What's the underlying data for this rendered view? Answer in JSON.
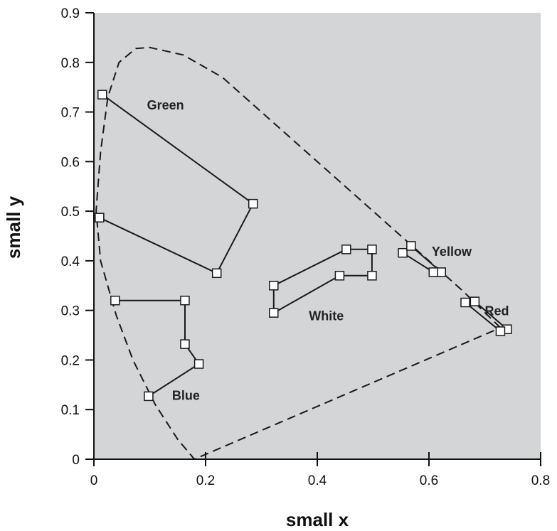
{
  "chart_data": {
    "type": "line",
    "xlabel": "small x",
    "ylabel": "small y",
    "xlim": [
      0,
      0.8
    ],
    "ylim": [
      0,
      0.9
    ],
    "x_ticks": [
      0,
      0.2,
      0.4,
      0.6,
      0.8
    ],
    "x_tick_labels": [
      "0",
      "0.2",
      "0.4",
      "0.6",
      "0.8"
    ],
    "y_ticks": [
      0,
      0.1,
      0.2,
      0.3,
      0.4,
      0.5,
      0.6,
      0.7,
      0.8,
      0.9
    ],
    "y_tick_labels": [
      "0",
      "0.1",
      "0.2",
      "0.3",
      "0.4",
      "0.5",
      "0.6",
      "0.7",
      "0.8",
      "0.9"
    ],
    "grid": false,
    "plot_background": "#d4d5d7",
    "boundary": {
      "style": "dashed",
      "points": [
        [
          0.728,
          0.265
        ],
        [
          0.66,
          0.34
        ],
        [
          0.57,
          0.43
        ],
        [
          0.5,
          0.5
        ],
        [
          0.44,
          0.56
        ],
        [
          0.37,
          0.63
        ],
        [
          0.3,
          0.7
        ],
        [
          0.23,
          0.77
        ],
        [
          0.16,
          0.815
        ],
        [
          0.1,
          0.83
        ],
        [
          0.075,
          0.828
        ],
        [
          0.045,
          0.8
        ],
        [
          0.025,
          0.73
        ],
        [
          0.012,
          0.62
        ],
        [
          0.004,
          0.5
        ],
        [
          0.012,
          0.4
        ],
        [
          0.04,
          0.29
        ],
        [
          0.07,
          0.2
        ],
        [
          0.11,
          0.11
        ],
        [
          0.15,
          0.04
        ],
        [
          0.18,
          0
        ],
        [
          0.728,
          0.265
        ]
      ]
    },
    "series": [
      {
        "name": "Green",
        "label_pos": [
          0.095,
          0.705
        ],
        "points": [
          [
            0.015,
            0.735
          ],
          [
            0.285,
            0.515
          ],
          [
            0.22,
            0.375
          ],
          [
            0.01,
            0.487
          ]
        ]
      },
      {
        "name": "Blue",
        "label_pos": [
          0.14,
          0.12
        ],
        "points": [
          [
            0.038,
            0.32
          ],
          [
            0.163,
            0.32
          ],
          [
            0.163,
            0.232
          ],
          [
            0.188,
            0.192
          ],
          [
            0.098,
            0.127
          ]
        ]
      },
      {
        "name": "White",
        "label_pos": [
          0.385,
          0.28
        ],
        "points": [
          [
            0.322,
            0.295
          ],
          [
            0.322,
            0.35
          ],
          [
            0.452,
            0.423
          ],
          [
            0.498,
            0.423
          ],
          [
            0.498,
            0.37
          ],
          [
            0.44,
            0.37
          ],
          [
            0.322,
            0.295
          ]
        ]
      },
      {
        "name": "Yellow",
        "label_pos": [
          0.605,
          0.41
        ],
        "points": [
          [
            0.553,
            0.416
          ],
          [
            0.568,
            0.43
          ],
          [
            0.622,
            0.377
          ],
          [
            0.608,
            0.377
          ],
          [
            0.553,
            0.416
          ]
        ]
      },
      {
        "name": "Red",
        "label_pos": [
          0.7,
          0.29
        ],
        "points": [
          [
            0.665,
            0.316
          ],
          [
            0.682,
            0.318
          ],
          [
            0.74,
            0.262
          ],
          [
            0.728,
            0.258
          ],
          [
            0.665,
            0.316
          ]
        ]
      }
    ]
  }
}
